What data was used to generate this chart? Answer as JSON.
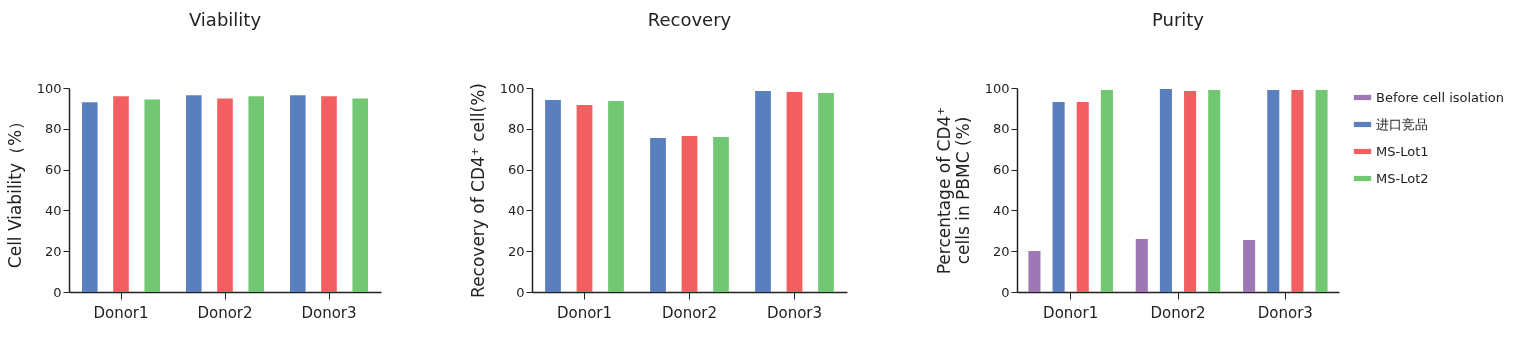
{
  "chart_data": [
    {
      "type": "bar",
      "title": "Viability",
      "ylabel": "Cell Viability（%）",
      "categories": [
        "Donor1",
        "Donor2",
        "Donor3"
      ],
      "ylim": [
        0,
        100
      ],
      "yticks": [
        0,
        20,
        40,
        60,
        80,
        100
      ],
      "series": [
        {
          "color": "#5a7fbe",
          "values": [
            93.0,
            96.4,
            96.4
          ]
        },
        {
          "color": "#f25f61",
          "values": [
            95.9,
            94.9,
            95.9
          ]
        },
        {
          "color": "#72c773",
          "values": [
            94.4,
            95.9,
            94.9
          ]
        }
      ]
    },
    {
      "type": "bar",
      "title": "Recovery",
      "ylabel": "Recovery of CD4⁺ cell(%)",
      "categories": [
        "Donor1",
        "Donor2",
        "Donor3"
      ],
      "ylim": [
        0,
        100
      ],
      "yticks": [
        0,
        20,
        40,
        60,
        80,
        100
      ],
      "series": [
        {
          "color": "#5a7fbe",
          "values": [
            94.1,
            75.5,
            98.5
          ]
        },
        {
          "color": "#f25f61",
          "values": [
            91.7,
            76.5,
            98.0
          ]
        },
        {
          "color": "#72c773",
          "values": [
            93.6,
            76.0,
            97.5
          ]
        }
      ]
    },
    {
      "type": "bar",
      "title": "Purity",
      "ylabel": "Percentage of CD4⁺\ncells in PBMC (%)",
      "categories": [
        "Donor1",
        "Donor2",
        "Donor3"
      ],
      "ylim": [
        0,
        100
      ],
      "yticks": [
        0,
        20,
        40,
        60,
        80,
        100
      ],
      "legend": "right",
      "series": [
        {
          "name": "Before cell isolation",
          "color": "#9d78b5",
          "values": [
            20.1,
            26.0,
            25.5
          ]
        },
        {
          "name": "进口竞品",
          "color": "#5a7fbe",
          "values": [
            93.1,
            99.5,
            99.0
          ]
        },
        {
          "name": "MS-Lot1",
          "color": "#f25f61",
          "values": [
            93.1,
            98.5,
            99.0
          ]
        },
        {
          "name": "MS-Lot2",
          "color": "#72c773",
          "values": [
            99.0,
            99.0,
            99.0
          ]
        }
      ]
    }
  ]
}
